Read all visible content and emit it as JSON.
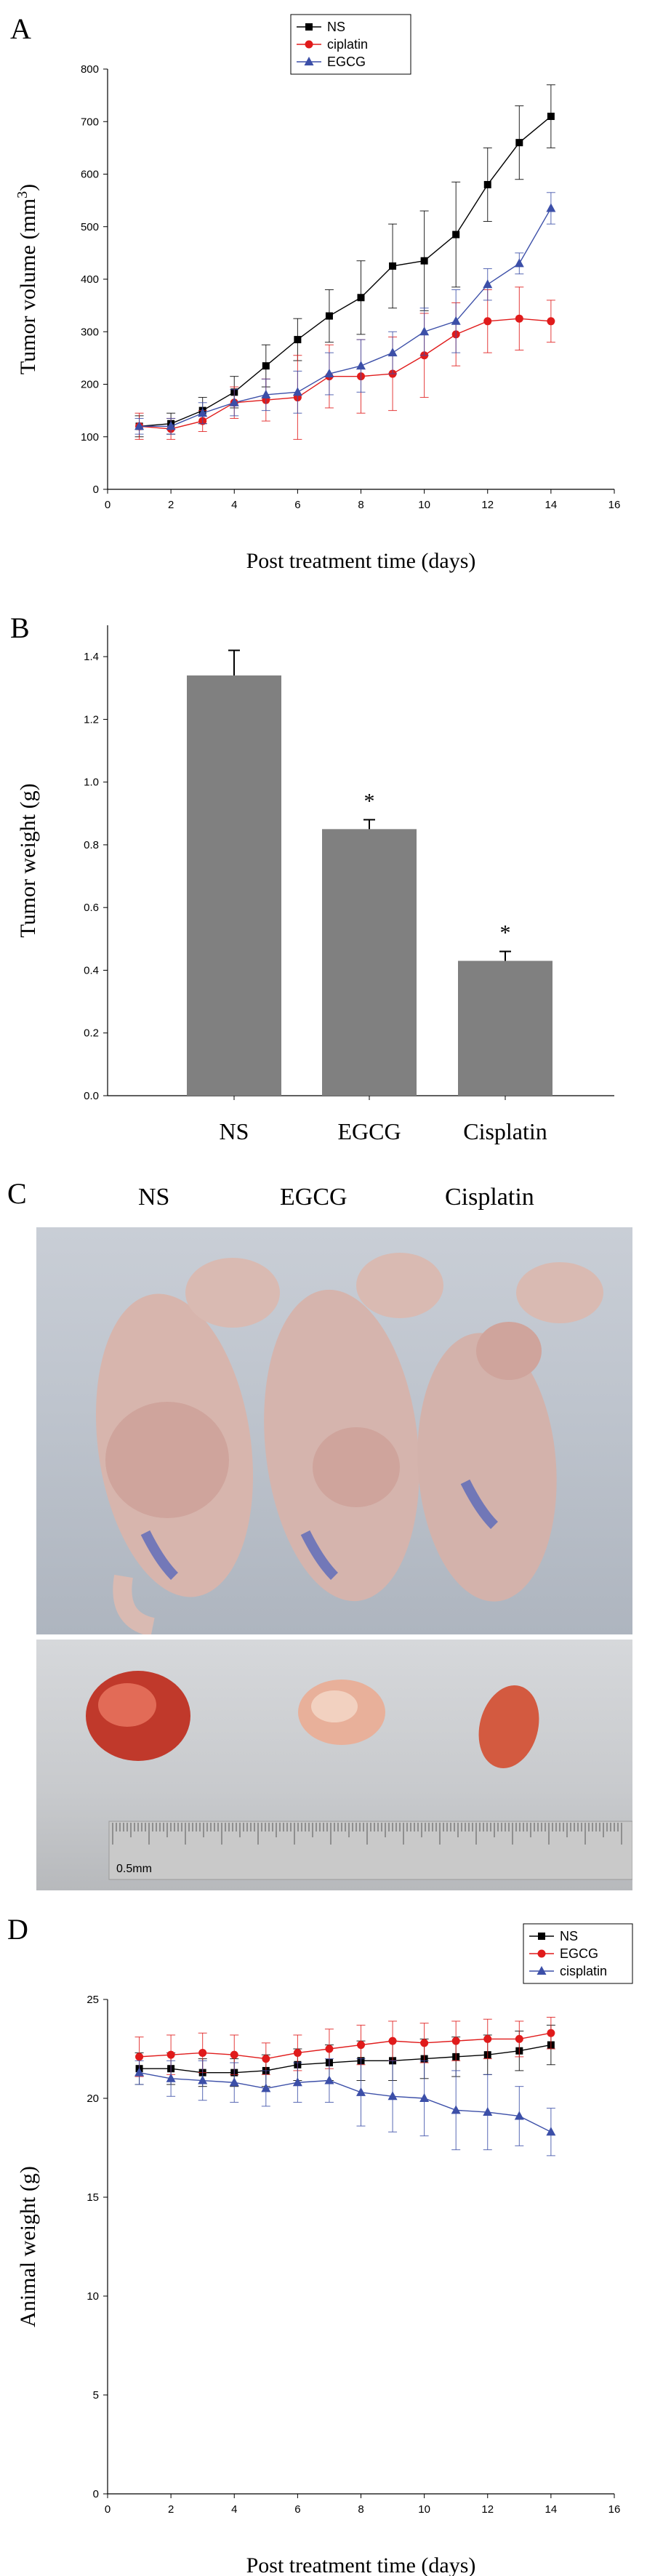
{
  "panels": {
    "A": "A",
    "B": "B",
    "C": "C",
    "D": "D"
  },
  "photo": {
    "labels": [
      "NS",
      "EGCG",
      "Cisplatin"
    ],
    "ruler_text": "0.5mm"
  },
  "chart_data": [
    {
      "id": "A",
      "type": "line",
      "xlabel": "Post treatment time  (days)",
      "ylabel": "Tumor volume (mm³)",
      "xlim": [
        0,
        16
      ],
      "ylim": [
        0,
        800
      ],
      "xticks": [
        0,
        2,
        4,
        6,
        8,
        10,
        12,
        14,
        16
      ],
      "yticks": [
        0,
        100,
        200,
        300,
        400,
        500,
        600,
        700,
        800
      ],
      "legend_position": "top-center",
      "x": [
        1,
        2,
        3,
        4,
        5,
        6,
        7,
        8,
        9,
        10,
        11,
        12,
        13,
        14
      ],
      "series": [
        {
          "name": "NS",
          "color": "#000000",
          "marker": "square",
          "values": [
            120,
            125,
            150,
            185,
            235,
            285,
            330,
            365,
            425,
            435,
            485,
            580,
            660,
            710
          ],
          "errors": [
            20,
            20,
            25,
            30,
            40,
            40,
            50,
            70,
            80,
            95,
            100,
            70,
            70,
            60
          ]
        },
        {
          "name": "ciplatin",
          "color": "#e01b1b",
          "marker": "circle",
          "values": [
            120,
            115,
            130,
            165,
            170,
            175,
            215,
            215,
            220,
            255,
            295,
            320,
            325,
            320
          ],
          "errors": [
            25,
            20,
            20,
            30,
            40,
            80,
            60,
            70,
            70,
            80,
            60,
            60,
            60,
            40
          ]
        },
        {
          "name": "EGCG",
          "color": "#3c4fa8",
          "marker": "triangle",
          "values": [
            120,
            120,
            145,
            165,
            180,
            185,
            220,
            235,
            260,
            300,
            320,
            390,
            430,
            535
          ],
          "errors": [
            15,
            15,
            20,
            25,
            30,
            40,
            40,
            50,
            40,
            45,
            60,
            30,
            20,
            30
          ]
        }
      ]
    },
    {
      "id": "B",
      "type": "bar",
      "ylabel": "Tumor weight (g)",
      "categories": [
        "NS",
        "EGCG",
        "Cisplatin"
      ],
      "values": [
        1.34,
        0.85,
        0.43
      ],
      "errors": [
        0.08,
        0.03,
        0.03
      ],
      "significance": [
        "",
        "*",
        "*"
      ],
      "ylim": [
        0,
        1.5
      ],
      "yticks": [
        "0.0",
        "0.2",
        "0.4",
        "0.6",
        "0.8",
        "1.0",
        "1.2",
        "1.4"
      ],
      "bar_color": "#808080"
    },
    {
      "id": "D",
      "type": "line",
      "xlabel": "Post treatment time (days)",
      "ylabel": "Animal weight (g)",
      "xlim": [
        0,
        16
      ],
      "ylim": [
        0,
        25
      ],
      "xticks": [
        0,
        2,
        4,
        6,
        8,
        10,
        12,
        14,
        16
      ],
      "yticks": [
        0,
        5,
        10,
        15,
        20,
        25
      ],
      "legend_position": "top-right",
      "x": [
        1,
        2,
        3,
        4,
        5,
        6,
        7,
        8,
        9,
        10,
        11,
        12,
        13,
        14
      ],
      "series": [
        {
          "name": "NS",
          "color": "#000000",
          "marker": "square",
          "values": [
            21.5,
            21.5,
            21.3,
            21.3,
            21.4,
            21.7,
            21.8,
            21.9,
            21.9,
            22.0,
            22.1,
            22.2,
            22.4,
            22.7
          ],
          "errors": [
            0.8,
            0.8,
            0.7,
            0.7,
            0.8,
            0.8,
            0.9,
            1.0,
            1.0,
            1.0,
            1.0,
            1.0,
            1.0,
            1.0
          ]
        },
        {
          "name": "EGCG",
          "color": "#e01b1b",
          "marker": "circle",
          "values": [
            22.1,
            22.2,
            22.3,
            22.2,
            22.0,
            22.3,
            22.5,
            22.7,
            22.9,
            22.8,
            22.9,
            23.0,
            23.0,
            23.3
          ],
          "errors": [
            1.0,
            1.0,
            1.0,
            1.0,
            0.8,
            0.9,
            1.0,
            1.0,
            1.0,
            1.0,
            1.0,
            1.0,
            0.9,
            0.8
          ]
        },
        {
          "name": "cisplatin",
          "color": "#3c4fa8",
          "marker": "triangle",
          "values": [
            21.3,
            21.0,
            20.9,
            20.8,
            20.5,
            20.8,
            20.9,
            20.3,
            20.1,
            20.0,
            19.4,
            19.3,
            19.1,
            18.3
          ],
          "errors": [
            0.6,
            0.9,
            1.0,
            1.0,
            0.9,
            1.0,
            1.1,
            1.7,
            1.8,
            1.9,
            2.0,
            1.9,
            1.5,
            1.2
          ]
        }
      ]
    }
  ]
}
